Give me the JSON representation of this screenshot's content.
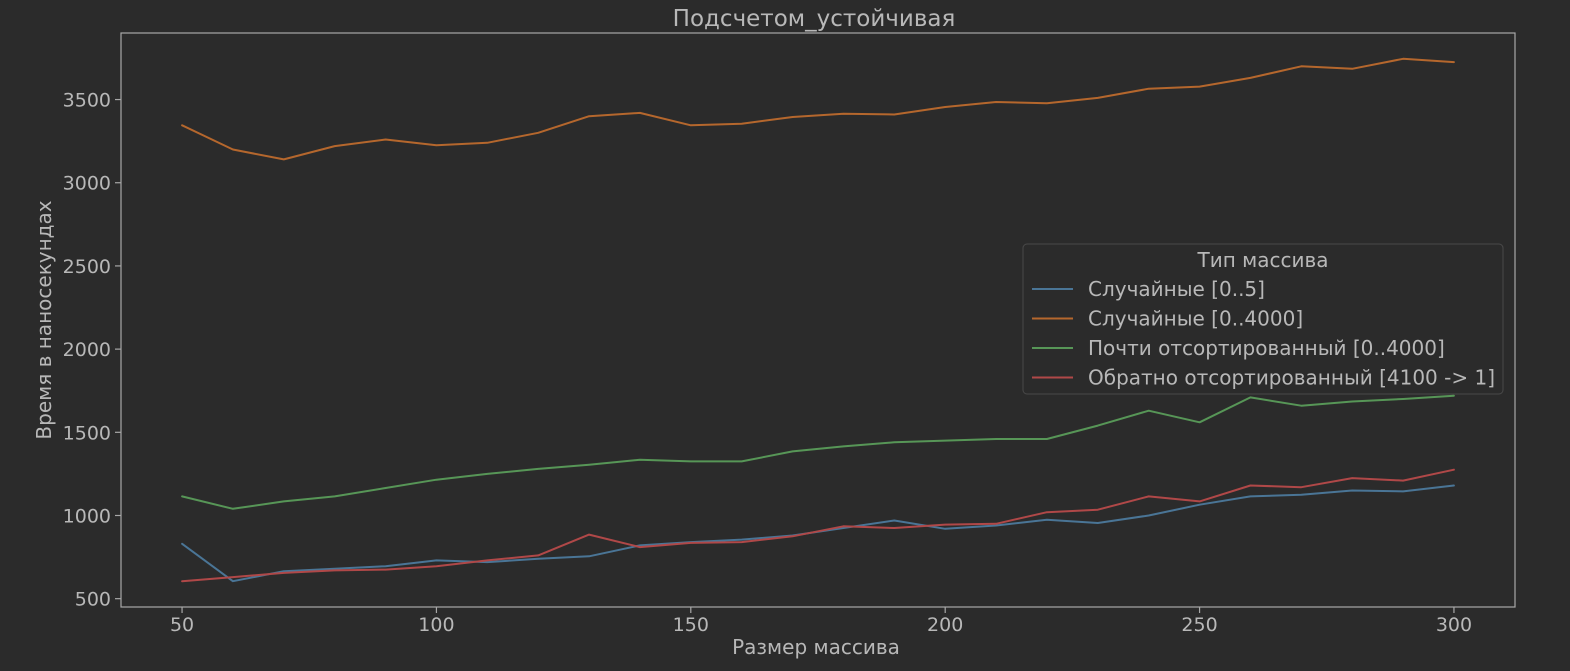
{
  "chart_data": {
    "type": "line",
    "title": "Подсчетом_устойчивая",
    "xlabel": "Размер массива",
    "ylabel": "Время в наносекундах",
    "xlim": [
      38,
      312
    ],
    "ylim": [
      450,
      3900
    ],
    "xticks": [
      50,
      100,
      150,
      200,
      250,
      300
    ],
    "yticks": [
      500,
      1000,
      1500,
      2000,
      2500,
      3000,
      3500
    ],
    "grid": false,
    "legend": {
      "title": "Тип массива",
      "placement": "center-right"
    },
    "x": [
      50,
      60,
      70,
      80,
      90,
      100,
      110,
      120,
      130,
      140,
      150,
      160,
      170,
      180,
      190,
      200,
      210,
      220,
      230,
      240,
      250,
      260,
      270,
      280,
      290,
      300
    ],
    "series": [
      {
        "name": "Случайные [0..5]",
        "color": "#4a7596",
        "values": [
          830,
          605,
          665,
          680,
          695,
          730,
          720,
          740,
          755,
          820,
          840,
          855,
          880,
          925,
          970,
          920,
          940,
          975,
          955,
          1000,
          1065,
          1115,
          1125,
          1150,
          1145,
          1180
        ]
      },
      {
        "name": "Случайные [0..4000]",
        "color": "#b5672d",
        "values": [
          3345,
          3200,
          3140,
          3220,
          3260,
          3225,
          3240,
          3300,
          3400,
          3420,
          3345,
          3355,
          3395,
          3415,
          3410,
          3455,
          3485,
          3478,
          3510,
          3565,
          3578,
          3630,
          3700,
          3685,
          3745,
          3725
        ]
      },
      {
        "name": "Почти отсортированный [0..4000]",
        "color": "#579657",
        "values": [
          1115,
          1040,
          1085,
          1115,
          1165,
          1215,
          1250,
          1280,
          1305,
          1335,
          1325,
          1325,
          1385,
          1415,
          1440,
          1450,
          1460,
          1460,
          1540,
          1630,
          1560,
          1710,
          1660,
          1685,
          1700,
          1720
        ]
      },
      {
        "name": "Обратно отсортированный [4100 -> 1]",
        "color": "#b04848",
        "values": [
          605,
          630,
          655,
          670,
          675,
          695,
          730,
          760,
          885,
          810,
          835,
          840,
          875,
          935,
          925,
          945,
          950,
          1020,
          1035,
          1115,
          1085,
          1180,
          1170,
          1225,
          1210,
          1275
        ]
      }
    ],
    "axis_color": "#a8a8a8",
    "background": "#2b2b2b"
  }
}
